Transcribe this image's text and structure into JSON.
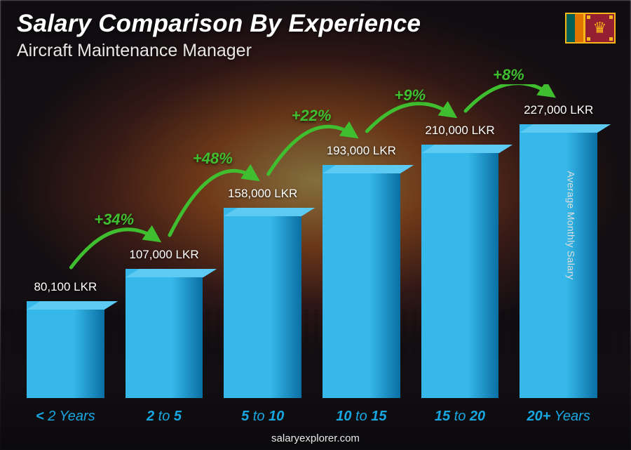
{
  "title": "Salary Comparison By Experience",
  "subtitle": "Aircraft Maintenance Manager",
  "yAxisLabel": "Average Monthly Salary",
  "footer": "salaryexplorer.com",
  "currency": "LKR",
  "chart": {
    "type": "bar",
    "barColorLight": "#36b9ea",
    "barColorDark": "#0a6fa3",
    "barTopColor": "#5ccaf2",
    "xLabelColor": "#19a7e1",
    "pctColor": "#3fbf2f",
    "arrowColor": "#3fbf2f",
    "valueFontSize": 17,
    "pctFontSize": 22,
    "xLabelFontSize": 20,
    "maxValue": 227000,
    "maxBarHeightPx": 390
  },
  "bars": [
    {
      "label_a": "<",
      "label_b": " 2 Years",
      "value": 80100,
      "valueLabel": "80,100 LKR"
    },
    {
      "label_a": "2",
      "label_b": " to ",
      "label_c": "5",
      "value": 107000,
      "valueLabel": "107,000 LKR"
    },
    {
      "label_a": "5",
      "label_b": " to ",
      "label_c": "10",
      "value": 158000,
      "valueLabel": "158,000 LKR"
    },
    {
      "label_a": "10",
      "label_b": " to ",
      "label_c": "15",
      "value": 193000,
      "valueLabel": "193,000 LKR"
    },
    {
      "label_a": "15",
      "label_b": " to ",
      "label_c": "20",
      "value": 210000,
      "valueLabel": "210,000 LKR"
    },
    {
      "label_a": "20+",
      "label_b": " Years",
      "value": 227000,
      "valueLabel": "227,000 LKR"
    }
  ],
  "increases": [
    {
      "from": 0,
      "to": 1,
      "pct": "+34%"
    },
    {
      "from": 1,
      "to": 2,
      "pct": "+48%"
    },
    {
      "from": 2,
      "to": 3,
      "pct": "+22%"
    },
    {
      "from": 3,
      "to": 4,
      "pct": "+9%"
    },
    {
      "from": 4,
      "to": 5,
      "pct": "+8%"
    }
  ],
  "flag": {
    "border": "#F7B718",
    "green": "#005F56",
    "orange": "#DF7500",
    "maroon": "#941E32",
    "gold": "#F7B718"
  }
}
